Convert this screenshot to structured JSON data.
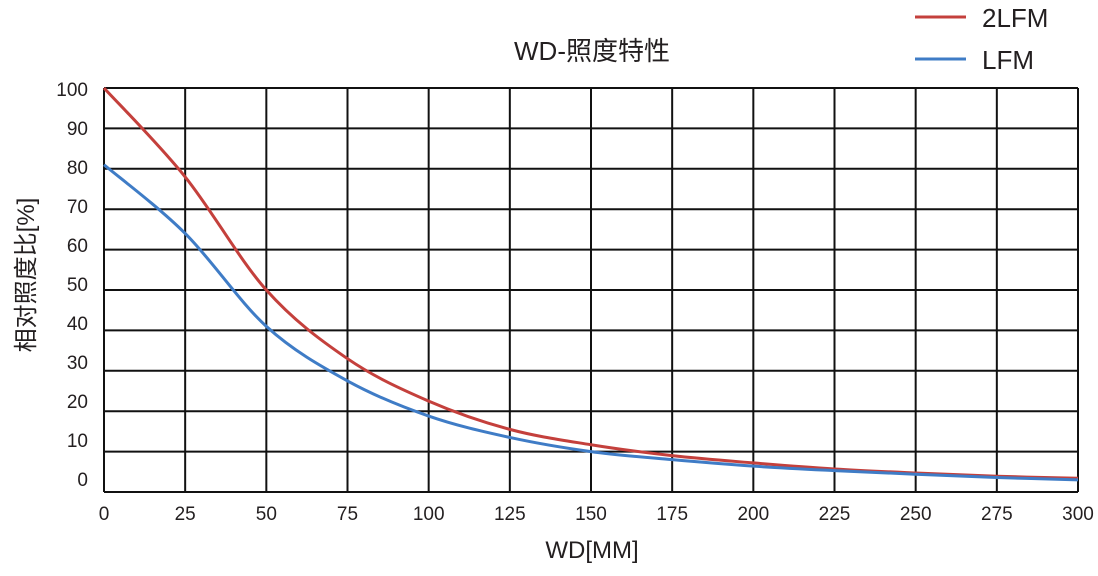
{
  "chart_data": {
    "type": "line",
    "title": "WD-照度特性",
    "xlabel": "WD[MM]",
    "ylabel": "相对照度比[%]",
    "xlim": [
      0,
      300
    ],
    "ylim": [
      0,
      100
    ],
    "xticks": [
      0,
      25,
      50,
      75,
      100,
      125,
      150,
      175,
      200,
      225,
      250,
      275,
      300
    ],
    "yticks": [
      0,
      10,
      20,
      30,
      40,
      50,
      60,
      70,
      80,
      90,
      100
    ],
    "grid": true,
    "legend_position": "top-right",
    "x": [
      0,
      25,
      50,
      75,
      100,
      125,
      150,
      175,
      200,
      225,
      250,
      275,
      300
    ],
    "series": [
      {
        "name": "2LFM",
        "color": "#c4403c",
        "values": [
          100,
          78,
          50,
          33,
          22.5,
          15.5,
          11.7,
          9,
          7.2,
          5.7,
          4.7,
          3.9,
          3.4
        ]
      },
      {
        "name": "LFM",
        "color": "#3f7cc6",
        "values": [
          81,
          64,
          41,
          27.5,
          18.8,
          13.5,
          10,
          8,
          6.4,
          5.3,
          4.4,
          3.6,
          3.0
        ]
      }
    ]
  }
}
